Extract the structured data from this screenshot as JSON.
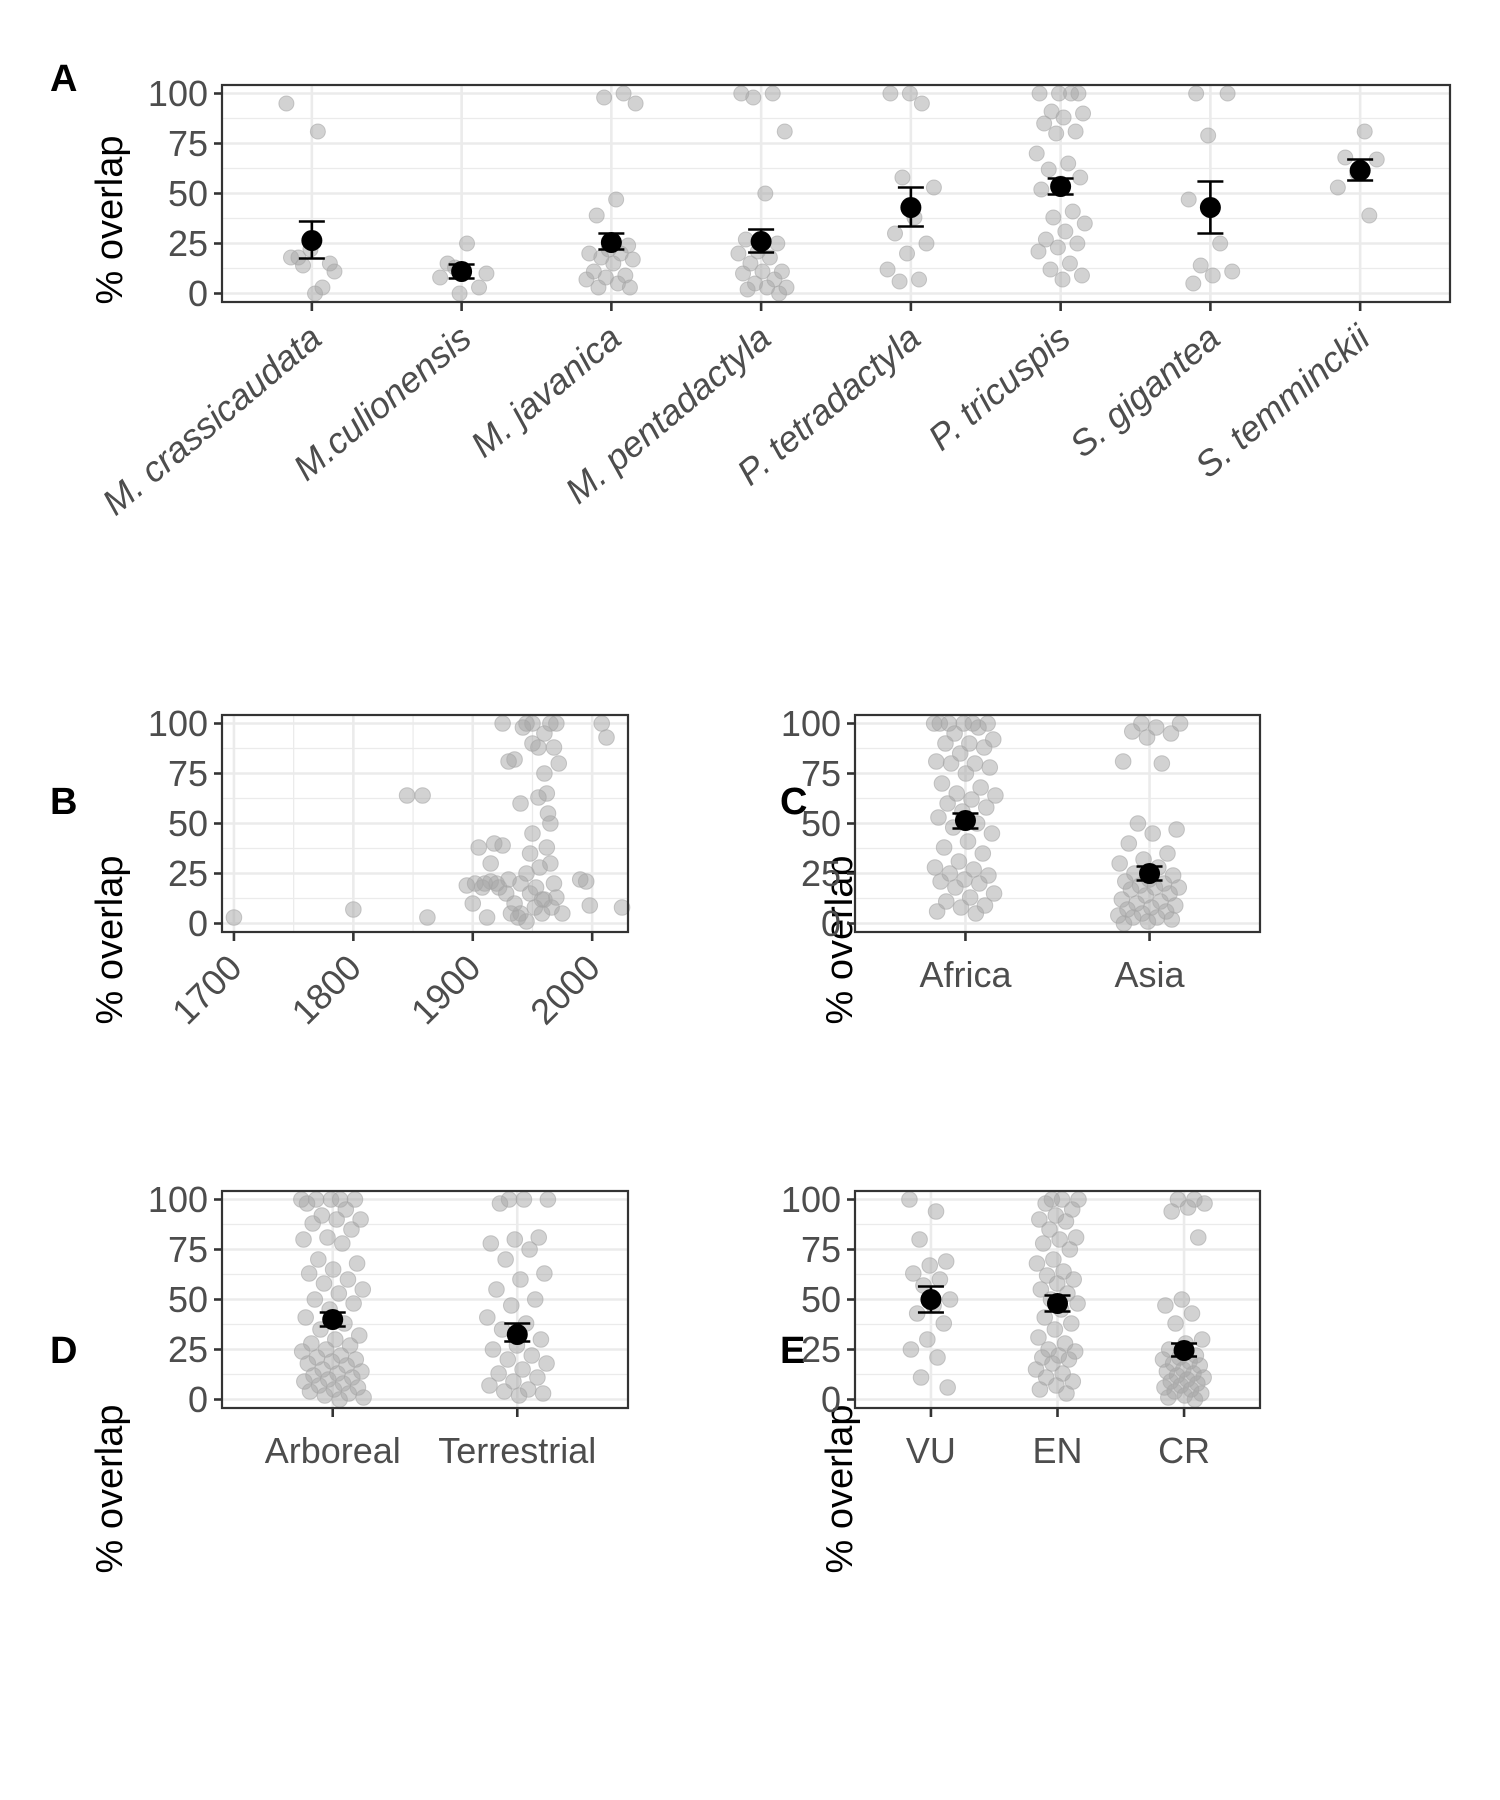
{
  "chart_data": [
    {
      "panel": "A",
      "type": "scatter",
      "ylabel": "% overlap",
      "ylim": [
        0,
        100
      ],
      "yticks": [
        0,
        25,
        50,
        75,
        100
      ],
      "grid": true,
      "x_italic": true,
      "categories": [
        "M. crassicaudata",
        "M.culionensis",
        "M. javanica",
        "M. pentadactyla",
        "P. tetradactyla",
        "P. tricuspis",
        "S. gigantea",
        "S. temminckii"
      ],
      "points": [
        [
          95,
          81,
          18,
          15,
          22,
          18,
          3,
          14,
          11,
          0
        ],
        [
          13,
          10,
          25,
          15,
          3,
          0,
          8
        ],
        [
          100,
          98,
          95,
          47,
          39,
          24,
          22,
          20,
          20,
          18,
          17,
          15,
          11,
          9,
          8,
          7,
          5,
          3,
          3
        ],
        [
          100,
          100,
          98,
          81,
          50,
          27,
          25,
          21,
          20,
          18,
          15,
          11,
          11,
          10,
          7,
          5,
          3,
          3,
          2,
          0
        ],
        [
          100,
          100,
          95,
          58,
          53,
          38,
          30,
          25,
          20,
          12,
          7,
          6
        ],
        [
          100,
          100,
          100,
          100,
          91,
          90,
          88,
          85,
          81,
          80,
          70,
          65,
          62,
          58,
          55,
          52,
          41,
          38,
          35,
          31,
          27,
          25,
          23,
          21,
          15,
          12,
          9,
          7
        ],
        [
          100,
          100,
          79,
          47,
          25,
          14,
          11,
          9,
          5
        ],
        [
          81,
          68,
          67,
          60,
          53,
          39
        ]
      ],
      "mean": [
        26.5,
        11,
        25.5,
        26,
        43,
        53.5,
        43,
        61.5
      ],
      "ci_low": [
        17.5,
        7.5,
        22,
        20.5,
        33.5,
        49.5,
        30,
        56.5
      ],
      "ci_high": [
        36,
        14.5,
        30,
        32,
        53,
        57.5,
        56,
        67
      ]
    },
    {
      "panel": "B",
      "type": "scatter",
      "ylabel": "% overlap",
      "ylim": [
        0,
        100
      ],
      "yticks": [
        0,
        25,
        50,
        75,
        100
      ],
      "xlim": [
        1690,
        2030
      ],
      "xticks": [
        1700,
        1800,
        1900,
        2000
      ],
      "grid": true,
      "x": [
        1700,
        1800,
        1845,
        1858,
        1862,
        1895,
        1900,
        1902,
        1905,
        1908,
        1910,
        1912,
        1915,
        1915,
        1918,
        1920,
        1922,
        1925,
        1925,
        1928,
        1930,
        1930,
        1932,
        1935,
        1935,
        1938,
        1940,
        1940,
        1940,
        1942,
        1945,
        1945,
        1945,
        1948,
        1948,
        1950,
        1950,
        1950,
        1952,
        1953,
        1955,
        1955,
        1956,
        1958,
        1958,
        1960,
        1960,
        1960,
        1962,
        1962,
        1963,
        1965,
        1965,
        1965,
        1966,
        1968,
        1968,
        1970,
        1970,
        1972,
        1975,
        1990,
        1995,
        1998,
        2008,
        2012,
        2025
      ],
      "y": [
        3,
        7,
        64,
        64,
        3,
        19,
        10,
        20,
        38,
        18,
        20,
        3,
        30,
        21,
        40,
        20,
        18,
        39,
        100,
        15,
        81,
        22,
        5,
        82,
        10,
        3,
        60,
        20,
        5,
        98,
        1,
        100,
        25,
        15,
        35,
        100,
        90,
        45,
        8,
        18,
        88,
        63,
        28,
        5,
        12,
        95,
        75,
        12,
        65,
        38,
        55,
        50,
        30,
        100,
        8,
        88,
        20,
        100,
        13,
        80,
        5,
        22,
        21,
        9,
        100,
        93,
        8
      ]
    },
    {
      "panel": "C",
      "type": "scatter",
      "ylabel": "% overlap",
      "ylim": [
        0,
        100
      ],
      "yticks": [
        0,
        25,
        50,
        75,
        100
      ],
      "grid": true,
      "categories": [
        "Africa",
        "Asia"
      ],
      "points": [
        [
          100,
          100,
          100,
          100,
          100,
          100,
          98,
          95,
          92,
          90,
          90,
          88,
          85,
          81,
          80,
          80,
          78,
          75,
          70,
          68,
          65,
          64,
          62,
          60,
          58,
          56,
          53,
          50,
          48,
          45,
          41,
          38,
          35,
          31,
          28,
          27,
          25,
          24,
          22,
          21,
          20,
          18,
          15,
          13,
          11,
          9,
          8,
          6,
          5
        ],
        [
          100,
          100,
          98,
          96,
          95,
          93,
          81,
          80,
          50,
          47,
          45,
          40,
          35,
          32,
          30,
          28,
          25,
          24,
          22,
          21,
          20,
          19,
          18,
          18,
          17,
          15,
          14,
          12,
          11,
          10,
          9,
          8,
          7,
          6,
          5,
          4,
          3,
          3,
          2,
          1,
          0
        ]
      ],
      "mean": [
        51.5,
        25
      ],
      "ci_low": [
        47.5,
        21.5
      ],
      "ci_high": [
        55,
        28.5
      ]
    },
    {
      "panel": "D",
      "type": "scatter",
      "ylabel": "% overlap",
      "ylim": [
        0,
        100
      ],
      "yticks": [
        0,
        25,
        50,
        75,
        100
      ],
      "grid": true,
      "categories": [
        "Arboreal",
        "Terrestrial"
      ],
      "points": [
        [
          100,
          100,
          100,
          100,
          100,
          98,
          95,
          92,
          90,
          90,
          88,
          85,
          81,
          80,
          78,
          70,
          68,
          65,
          63,
          60,
          58,
          55,
          53,
          50,
          48,
          45,
          41,
          38,
          35,
          32,
          30,
          28,
          27,
          25,
          24,
          22,
          21,
          20,
          19,
          18,
          17,
          15,
          14,
          13,
          12,
          11,
          10,
          9,
          8,
          7,
          6,
          5,
          4,
          3,
          2,
          1,
          0
        ],
        [
          100,
          100,
          100,
          98,
          81,
          80,
          78,
          75,
          70,
          63,
          60,
          55,
          50,
          47,
          41,
          38,
          35,
          30,
          27,
          25,
          22,
          20,
          18,
          15,
          13,
          11,
          9,
          7,
          5,
          4,
          3,
          2
        ]
      ],
      "mean": [
        40,
        32.5
      ],
      "ci_low": [
        36.5,
        29
      ],
      "ci_high": [
        43.5,
        38
      ]
    },
    {
      "panel": "E",
      "type": "scatter",
      "ylabel": "% overlap",
      "ylim": [
        0,
        100
      ],
      "yticks": [
        0,
        25,
        50,
        75,
        100
      ],
      "grid": true,
      "categories": [
        "VU",
        "EN",
        "CR"
      ],
      "points": [
        [
          100,
          94,
          80,
          69,
          67,
          63,
          60,
          57,
          50,
          47,
          43,
          38,
          30,
          25,
          21,
          11,
          6
        ],
        [
          100,
          100,
          100,
          98,
          95,
          92,
          90,
          89,
          85,
          81,
          80,
          78,
          75,
          70,
          68,
          64,
          62,
          60,
          58,
          55,
          53,
          50,
          48,
          45,
          41,
          38,
          35,
          31,
          28,
          25,
          24,
          22,
          21,
          20,
          18,
          15,
          13,
          11,
          9,
          7,
          5,
          3
        ],
        [
          100,
          100,
          98,
          96,
          94,
          81,
          50,
          47,
          43,
          38,
          30,
          28,
          25,
          22,
          21,
          20,
          19,
          18,
          17,
          15,
          14,
          13,
          12,
          11,
          10,
          9,
          8,
          7,
          6,
          5,
          4,
          3,
          2,
          1,
          0
        ]
      ],
      "mean": [
        50,
        48,
        24.5
      ],
      "ci_low": [
        43.5,
        44,
        21.5
      ],
      "ci_high": [
        56.5,
        52,
        28
      ]
    }
  ]
}
